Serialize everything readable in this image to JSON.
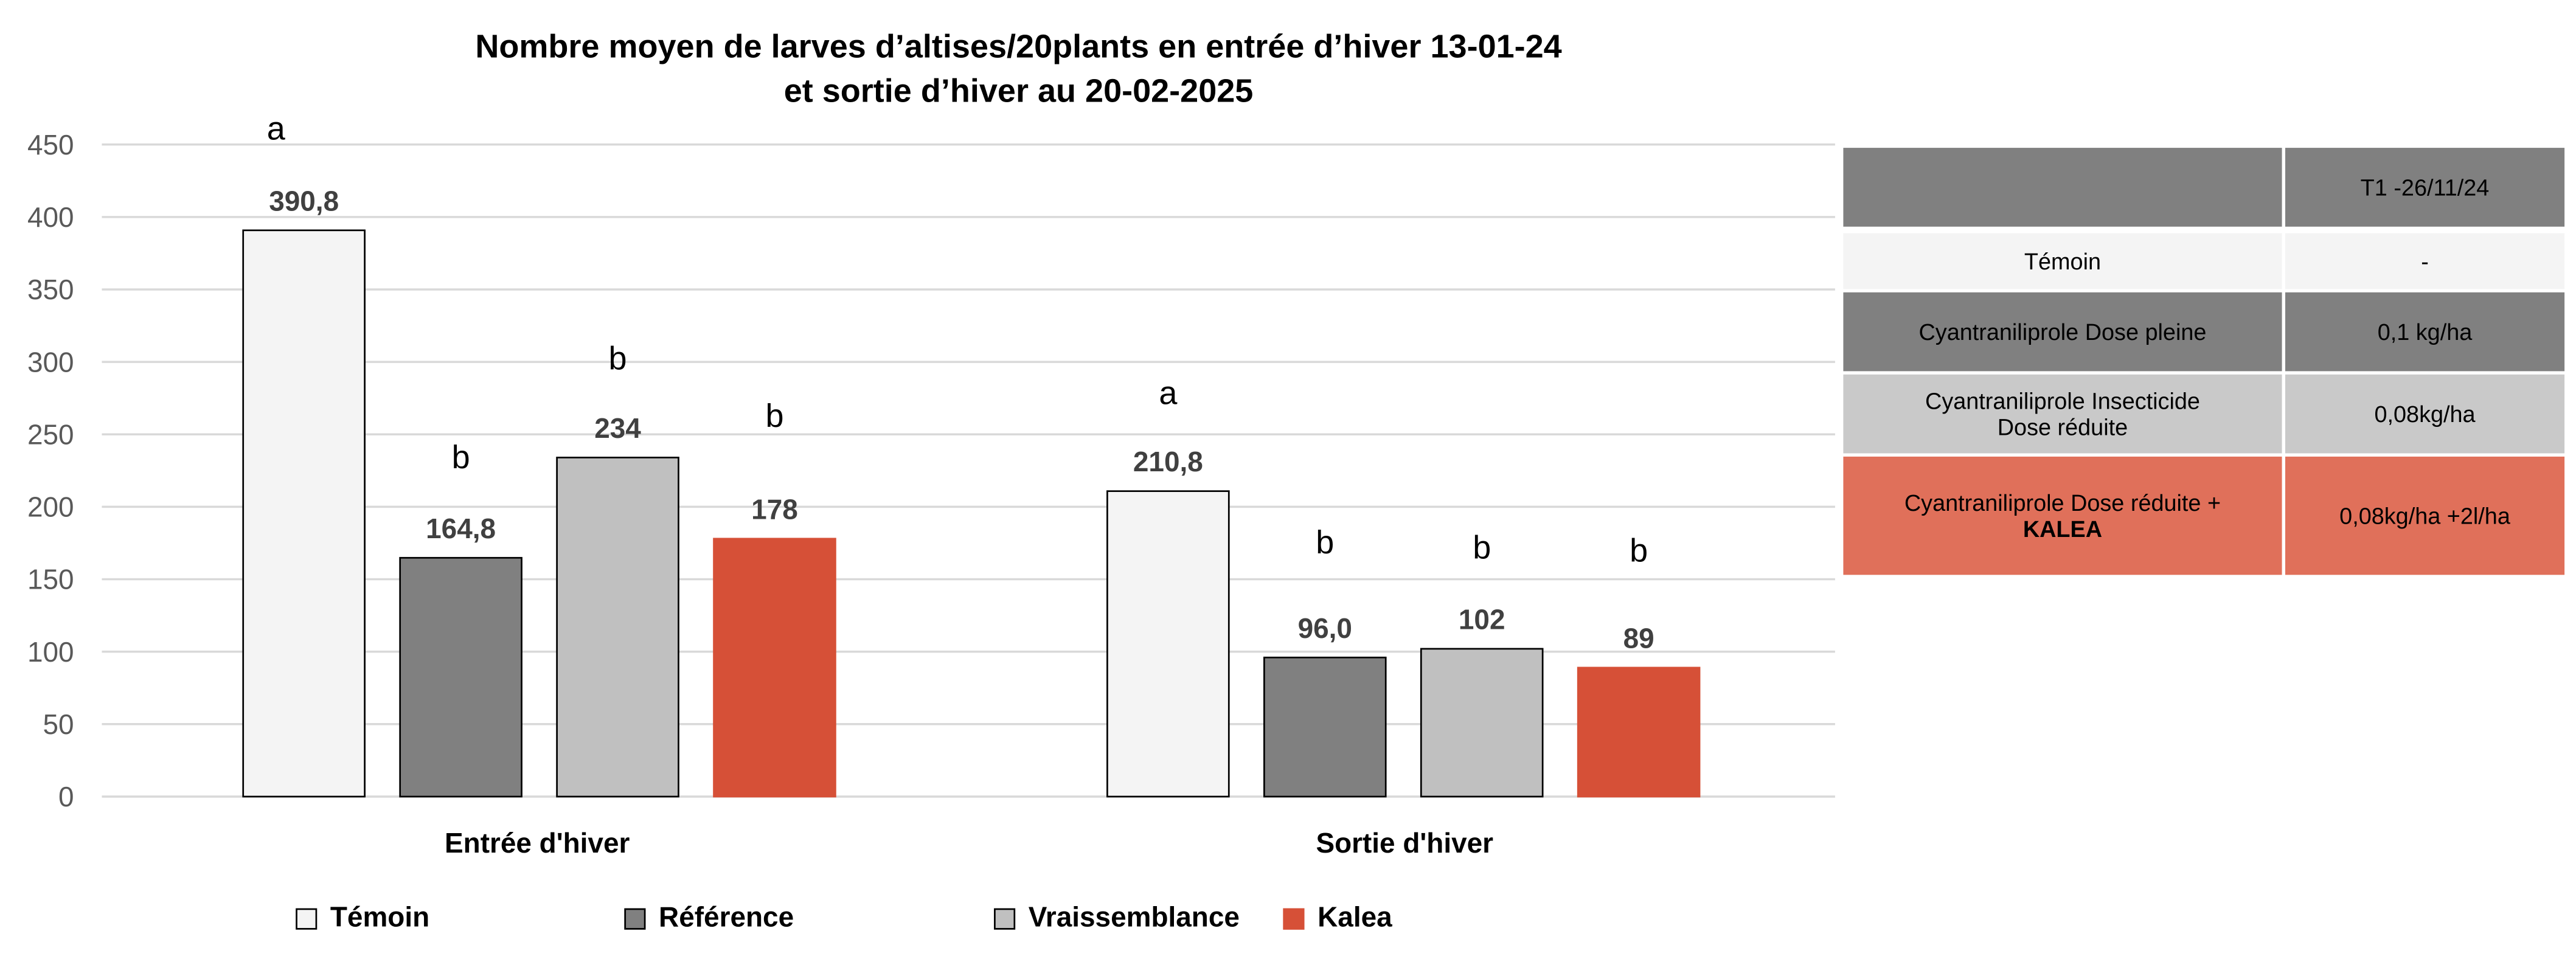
{
  "chart_data": {
    "type": "bar",
    "title": "Nombre moyen de larves d’altises/20plants en entrée d’hiver 13-01-24",
    "subtitle": "et sortie d’hiver au 20-02-2025",
    "categories": [
      "Entrée d'hiver",
      "Sortie d'hiver"
    ],
    "ylim": [
      0,
      450
    ],
    "yticks": [
      0,
      50,
      100,
      150,
      200,
      250,
      300,
      350,
      400,
      450
    ],
    "grid": true,
    "legend_position": "bottom",
    "series": [
      {
        "name": "Témoin",
        "color": "#f4f4f4",
        "values": [
          390.8,
          210.8
        ],
        "labels": [
          "390,8",
          "210,8"
        ],
        "letters": [
          "a",
          "a"
        ]
      },
      {
        "name": "Référence",
        "color": "#808080",
        "values": [
          164.8,
          96.0
        ],
        "labels": [
          "164,8",
          "96,0"
        ],
        "letters": [
          "b",
          "b"
        ]
      },
      {
        "name": "Vraissemblance",
        "color": "#c0c0c0",
        "values": [
          234,
          102
        ],
        "labels": [
          "234",
          "102"
        ],
        "letters": [
          "b",
          "b"
        ]
      },
      {
        "name": "Kalea",
        "color": "#d65037",
        "values": [
          178,
          89
        ],
        "labels": [
          "178",
          "89"
        ],
        "letters": [
          "b",
          "b"
        ]
      }
    ]
  },
  "table": {
    "header": [
      "",
      "T1 -26/11/24"
    ],
    "rows": [
      {
        "product": "Témoin",
        "dose": "-"
      },
      {
        "product": "Cyantraniliprole Dose pleine",
        "dose": "0,1 kg/ha"
      },
      {
        "product": "Cyantraniliprole Insecticide",
        "product2": "Dose réduite",
        "dose": "0,08kg/ha"
      },
      {
        "product": "Cyantraniliprole Dose réduite +",
        "product2": "KALEA",
        "dose": "0,08kg/ha +2l/ha"
      }
    ]
  }
}
